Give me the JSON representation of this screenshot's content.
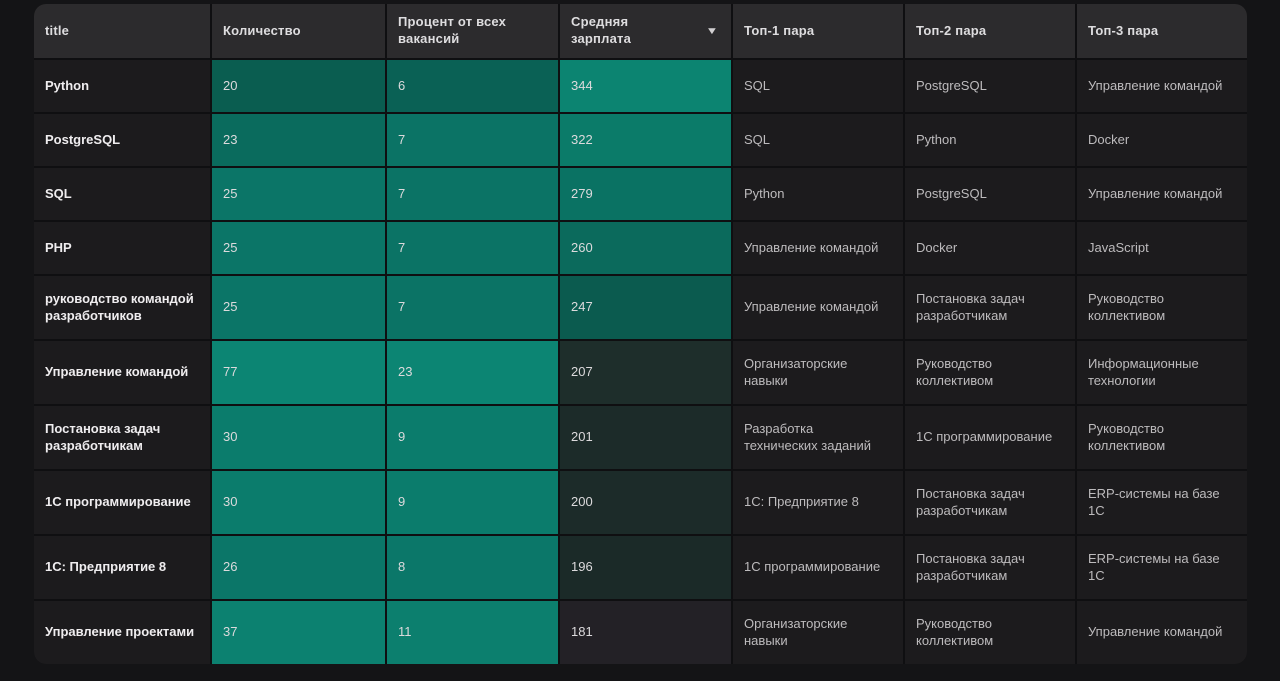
{
  "table": {
    "sort_icon": "▼",
    "columns": [
      {
        "label": "title"
      },
      {
        "label": "Количество"
      },
      {
        "label": "Процент от всех вакансий"
      },
      {
        "label": "Средняя зарплата",
        "sorted": "desc"
      },
      {
        "label": "Топ-1 пара"
      },
      {
        "label": "Топ-2 пара"
      },
      {
        "label": "Топ-3 пара"
      }
    ],
    "rows": [
      {
        "title": "Python",
        "count": {
          "value": "20",
          "bg": "#0A5D50"
        },
        "percent": {
          "value": "6",
          "bg": "#0A6155"
        },
        "salary": {
          "value": "344",
          "bg": "#0C8471"
        },
        "top1": "SQL",
        "top2": "PostgreSQL",
        "top3": "Управление командой"
      },
      {
        "title": "PostgreSQL",
        "count": {
          "value": "23",
          "bg": "#0A6B5D"
        },
        "percent": {
          "value": "7",
          "bg": "#0B7365"
        },
        "salary": {
          "value": "322",
          "bg": "#0B7B69"
        },
        "top1": "SQL",
        "top2": "Python",
        "top3": "Docker"
      },
      {
        "title": "SQL",
        "count": {
          "value": "25",
          "bg": "#0B7567"
        },
        "percent": {
          "value": "7",
          "bg": "#0B7365"
        },
        "salary": {
          "value": "279",
          "bg": "#0A7263"
        },
        "top1": "Python",
        "top2": "PostgreSQL",
        "top3": "Управление командой"
      },
      {
        "title": "PHP",
        "count": {
          "value": "25",
          "bg": "#0B7567"
        },
        "percent": {
          "value": "7",
          "bg": "#0B7365"
        },
        "salary": {
          "value": "260",
          "bg": "#0B6A5C"
        },
        "top1": "Управление командой",
        "top2": "Docker",
        "top3": "JavaScript"
      },
      {
        "title": "руководство командой разработчиков",
        "count": {
          "value": "25",
          "bg": "#0B7567"
        },
        "percent": {
          "value": "7",
          "bg": "#0B7365"
        },
        "salary": {
          "value": "247",
          "bg": "#0B5B4F"
        },
        "top1": "Управление командой",
        "top2": "Постановка задач разработчикам",
        "top3": "Руководство коллективом"
      },
      {
        "title": "Управление командой",
        "count": {
          "value": "77",
          "bg": "#0C8573"
        },
        "percent": {
          "value": "23",
          "bg": "#0C8573"
        },
        "salary": {
          "value": "207",
          "bg": "#1E2E2B"
        },
        "top1": "Организаторские навыки",
        "top2": "Руководство коллективом",
        "top3": "Информационные технологии"
      },
      {
        "title": "Постановка задач разработчикам",
        "count": {
          "value": "30",
          "bg": "#0B7C6C"
        },
        "percent": {
          "value": "9",
          "bg": "#0B7C6C"
        },
        "salary": {
          "value": "201",
          "bg": "#1C2B29"
        },
        "top1": "Разработка технических заданий",
        "top2": "1С программирование",
        "top3": "Руководство коллективом"
      },
      {
        "title": "1С программирование",
        "count": {
          "value": "30",
          "bg": "#0B7C6C"
        },
        "percent": {
          "value": "9",
          "bg": "#0B7C6C"
        },
        "salary": {
          "value": "200",
          "bg": "#1C2B29"
        },
        "top1": "1С: Предприятие 8",
        "top2": "Постановка задач разработчикам",
        "top3": "ERP-системы на базе 1С"
      },
      {
        "title": "1С: Предприятие 8",
        "count": {
          "value": "26",
          "bg": "#0B7668"
        },
        "percent": {
          "value": "8",
          "bg": "#0B7769"
        },
        "salary": {
          "value": "196",
          "bg": "#1B2A28"
        },
        "top1": "1С программирование",
        "top2": "Постановка задач разработчикам",
        "top3": "ERP-системы на базе 1С"
      },
      {
        "title": "Управление проектами",
        "count": {
          "value": "37",
          "bg": "#0C8170"
        },
        "percent": {
          "value": "11",
          "bg": "#0C7F6E"
        },
        "salary": {
          "value": "181",
          "bg": "#232126"
        },
        "top1": "Организаторские навыки",
        "top2": "Руководство коллективом",
        "top3": "Управление командой"
      }
    ]
  },
  "colors": {
    "page_background": "#141416",
    "header_background": "#2c2b2d",
    "cell_background": "#1c1b1d",
    "grid_line": "#0f0f11",
    "heat_min": "#232126",
    "heat_max": "#0C8573"
  }
}
